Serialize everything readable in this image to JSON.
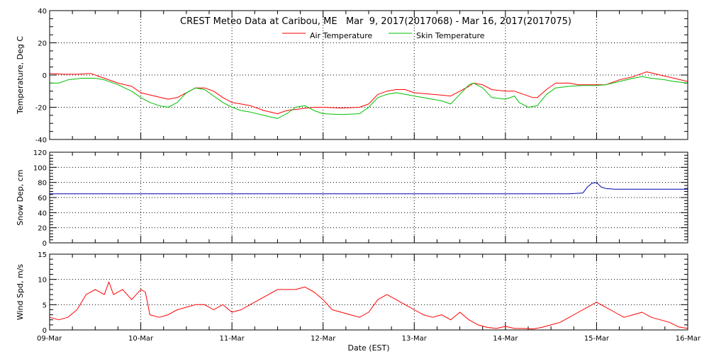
{
  "chart_data": {
    "title": "CREST Meteo Data at Caribou, ME   Mar  9, 2017(2017068) - Mar 16, 2017(2017075)",
    "type": "line",
    "xlabel": "Date (EST)",
    "x_ticks": [
      "09-Mar",
      "10-Mar",
      "11-Mar",
      "12-Mar",
      "13-Mar",
      "14-Mar",
      "15-Mar",
      "16-Mar"
    ],
    "xlim": [
      0,
      7
    ],
    "panels": [
      {
        "name": "temperature",
        "ylabel": "Temperature, Deg C",
        "ylim": [
          -40,
          40
        ],
        "y_ticks": [
          -40,
          -20,
          0,
          20,
          40
        ],
        "grid": true,
        "legend": "top-center",
        "series": [
          {
            "name": "Air Temperature",
            "color": "#ff0000",
            "points": [
              [
                0,
                1
              ],
              [
                0.15,
                0.5
              ],
              [
                0.3,
                0.5
              ],
              [
                0.45,
                1
              ],
              [
                0.5,
                0
              ],
              [
                0.6,
                -2
              ],
              [
                0.75,
                -5
              ],
              [
                0.9,
                -7
              ],
              [
                1.0,
                -11
              ],
              [
                1.15,
                -13
              ],
              [
                1.3,
                -15
              ],
              [
                1.4,
                -14
              ],
              [
                1.5,
                -11
              ],
              [
                1.6,
                -8
              ],
              [
                1.7,
                -8
              ],
              [
                1.8,
                -10
              ],
              [
                1.9,
                -14
              ],
              [
                2.0,
                -17
              ],
              [
                2.1,
                -18
              ],
              [
                2.2,
                -19
              ],
              [
                2.35,
                -22
              ],
              [
                2.5,
                -24
              ],
              [
                2.6,
                -22
              ],
              [
                2.75,
                -21
              ],
              [
                2.9,
                -20
              ],
              [
                3.0,
                -20
              ],
              [
                3.2,
                -20.5
              ],
              [
                3.4,
                -20
              ],
              [
                3.5,
                -18
              ],
              [
                3.6,
                -12
              ],
              [
                3.7,
                -10
              ],
              [
                3.8,
                -9
              ],
              [
                3.9,
                -9
              ],
              [
                4.0,
                -11
              ],
              [
                4.2,
                -12
              ],
              [
                4.3,
                -12.5
              ],
              [
                4.4,
                -13
              ],
              [
                4.5,
                -10
              ],
              [
                4.6,
                -7
              ],
              [
                4.65,
                -5
              ],
              [
                4.75,
                -6
              ],
              [
                4.85,
                -9
              ],
              [
                5.0,
                -10
              ],
              [
                5.1,
                -10
              ],
              [
                5.2,
                -12
              ],
              [
                5.3,
                -14
              ],
              [
                5.35,
                -14
              ],
              [
                5.45,
                -9
              ],
              [
                5.55,
                -5
              ],
              [
                5.7,
                -5
              ],
              [
                5.8,
                -6
              ],
              [
                5.9,
                -6
              ],
              [
                6.0,
                -6
              ],
              [
                6.1,
                -6
              ],
              [
                6.25,
                -3
              ],
              [
                6.4,
                -1
              ],
              [
                6.5,
                1
              ],
              [
                6.55,
                2
              ],
              [
                6.7,
                0
              ],
              [
                6.85,
                -2
              ],
              [
                7.0,
                -4
              ]
            ]
          },
          {
            "name": "Skin Temperature",
            "color": "#00c000",
            "points": [
              [
                0,
                -5
              ],
              [
                0.1,
                -5
              ],
              [
                0.2,
                -3
              ],
              [
                0.35,
                -2
              ],
              [
                0.5,
                -2
              ],
              [
                0.6,
                -3
              ],
              [
                0.75,
                -6
              ],
              [
                0.9,
                -10
              ],
              [
                1.0,
                -14
              ],
              [
                1.1,
                -17
              ],
              [
                1.2,
                -19
              ],
              [
                1.3,
                -20
              ],
              [
                1.4,
                -17
              ],
              [
                1.5,
                -11
              ],
              [
                1.6,
                -8
              ],
              [
                1.7,
                -9
              ],
              [
                1.8,
                -13
              ],
              [
                1.9,
                -17
              ],
              [
                2.0,
                -20
              ],
              [
                2.1,
                -22
              ],
              [
                2.2,
                -23
              ],
              [
                2.35,
                -25
              ],
              [
                2.5,
                -27
              ],
              [
                2.6,
                -24
              ],
              [
                2.7,
                -20
              ],
              [
                2.8,
                -19
              ],
              [
                2.9,
                -22
              ],
              [
                3.0,
                -24
              ],
              [
                3.2,
                -24.5
              ],
              [
                3.4,
                -24
              ],
              [
                3.5,
                -20
              ],
              [
                3.6,
                -14
              ],
              [
                3.7,
                -12
              ],
              [
                3.8,
                -11
              ],
              [
                3.9,
                -12
              ],
              [
                4.0,
                -13
              ],
              [
                4.2,
                -15
              ],
              [
                4.3,
                -16
              ],
              [
                4.4,
                -18
              ],
              [
                4.5,
                -12
              ],
              [
                4.6,
                -6
              ],
              [
                4.65,
                -5
              ],
              [
                4.75,
                -8
              ],
              [
                4.85,
                -14
              ],
              [
                5.0,
                -15
              ],
              [
                5.1,
                -13
              ],
              [
                5.15,
                -17
              ],
              [
                5.25,
                -20
              ],
              [
                5.35,
                -19
              ],
              [
                5.45,
                -12
              ],
              [
                5.55,
                -8
              ],
              [
                5.7,
                -7
              ],
              [
                5.85,
                -6.5
              ],
              [
                6.0,
                -6.5
              ],
              [
                6.1,
                -6
              ],
              [
                6.25,
                -4
              ],
              [
                6.4,
                -2
              ],
              [
                6.5,
                -1
              ],
              [
                6.6,
                -2
              ],
              [
                6.75,
                -3
              ],
              [
                6.85,
                -4
              ],
              [
                7.0,
                -5
              ]
            ]
          }
        ]
      },
      {
        "name": "snow-depth",
        "ylabel": "Snow Dep, cm",
        "ylim": [
          0,
          120
        ],
        "y_ticks": [
          0,
          20,
          40,
          60,
          80,
          100,
          120
        ],
        "grid": true,
        "series": [
          {
            "color": "#0000b0",
            "points": [
              [
                0,
                65
              ],
              [
                1,
                65
              ],
              [
                2,
                65
              ],
              [
                3,
                65
              ],
              [
                4,
                65
              ],
              [
                5,
                65
              ],
              [
                5.7,
                65
              ],
              [
                5.85,
                66
              ],
              [
                5.9,
                74
              ],
              [
                5.95,
                79
              ],
              [
                6.0,
                80
              ],
              [
                6.05,
                74
              ],
              [
                6.1,
                72
              ],
              [
                6.2,
                71
              ],
              [
                6.3,
                71
              ],
              [
                6.6,
                71
              ],
              [
                7.0,
                71
              ]
            ]
          }
        ]
      },
      {
        "name": "wind-speed",
        "ylabel": "Wind Spd, m/s",
        "ylim": [
          0,
          15
        ],
        "y_ticks": [
          0,
          5,
          10,
          15
        ],
        "grid": true,
        "series": [
          {
            "color": "#ff0000",
            "points": [
              [
                0,
                2.5
              ],
              [
                0.1,
                2
              ],
              [
                0.2,
                2.5
              ],
              [
                0.3,
                4
              ],
              [
                0.4,
                7
              ],
              [
                0.5,
                8
              ],
              [
                0.6,
                7
              ],
              [
                0.65,
                9.5
              ],
              [
                0.7,
                7
              ],
              [
                0.8,
                8
              ],
              [
                0.9,
                6
              ],
              [
                1.0,
                8
              ],
              [
                1.05,
                7.5
              ],
              [
                1.1,
                3
              ],
              [
                1.2,
                2.5
              ],
              [
                1.3,
                3
              ],
              [
                1.4,
                4
              ],
              [
                1.5,
                4.5
              ],
              [
                1.6,
                5
              ],
              [
                1.7,
                5
              ],
              [
                1.8,
                4
              ],
              [
                1.9,
                5
              ],
              [
                2.0,
                3.5
              ],
              [
                2.1,
                4
              ],
              [
                2.2,
                5
              ],
              [
                2.3,
                6
              ],
              [
                2.4,
                7
              ],
              [
                2.5,
                8
              ],
              [
                2.6,
                8
              ],
              [
                2.7,
                8
              ],
              [
                2.8,
                8.5
              ],
              [
                2.9,
                7.5
              ],
              [
                3.0,
                6
              ],
              [
                3.1,
                4
              ],
              [
                3.2,
                3.5
              ],
              [
                3.3,
                3
              ],
              [
                3.4,
                2.5
              ],
              [
                3.5,
                3.5
              ],
              [
                3.6,
                6
              ],
              [
                3.7,
                7
              ],
              [
                3.8,
                6
              ],
              [
                3.9,
                5
              ],
              [
                4.0,
                4
              ],
              [
                4.1,
                3
              ],
              [
                4.2,
                2.5
              ],
              [
                4.3,
                3
              ],
              [
                4.4,
                2
              ],
              [
                4.5,
                3.5
              ],
              [
                4.6,
                2
              ],
              [
                4.7,
                1
              ],
              [
                4.8,
                0.5
              ],
              [
                4.9,
                0.3
              ],
              [
                5.0,
                0.7
              ],
              [
                5.1,
                0.3
              ],
              [
                5.2,
                0.3
              ],
              [
                5.3,
                0.2
              ],
              [
                5.4,
                0.5
              ],
              [
                5.5,
                1
              ],
              [
                5.6,
                1.5
              ],
              [
                5.7,
                2.5
              ],
              [
                5.8,
                3.5
              ],
              [
                5.9,
                4.5
              ],
              [
                6.0,
                5.5
              ],
              [
                6.1,
                4.5
              ],
              [
                6.2,
                3.5
              ],
              [
                6.3,
                2.5
              ],
              [
                6.4,
                3
              ],
              [
                6.5,
                3.5
              ],
              [
                6.6,
                2.5
              ],
              [
                6.7,
                2
              ],
              [
                6.8,
                1.5
              ],
              [
                6.9,
                0.6
              ],
              [
                7.0,
                0.3
              ]
            ]
          }
        ]
      }
    ]
  }
}
